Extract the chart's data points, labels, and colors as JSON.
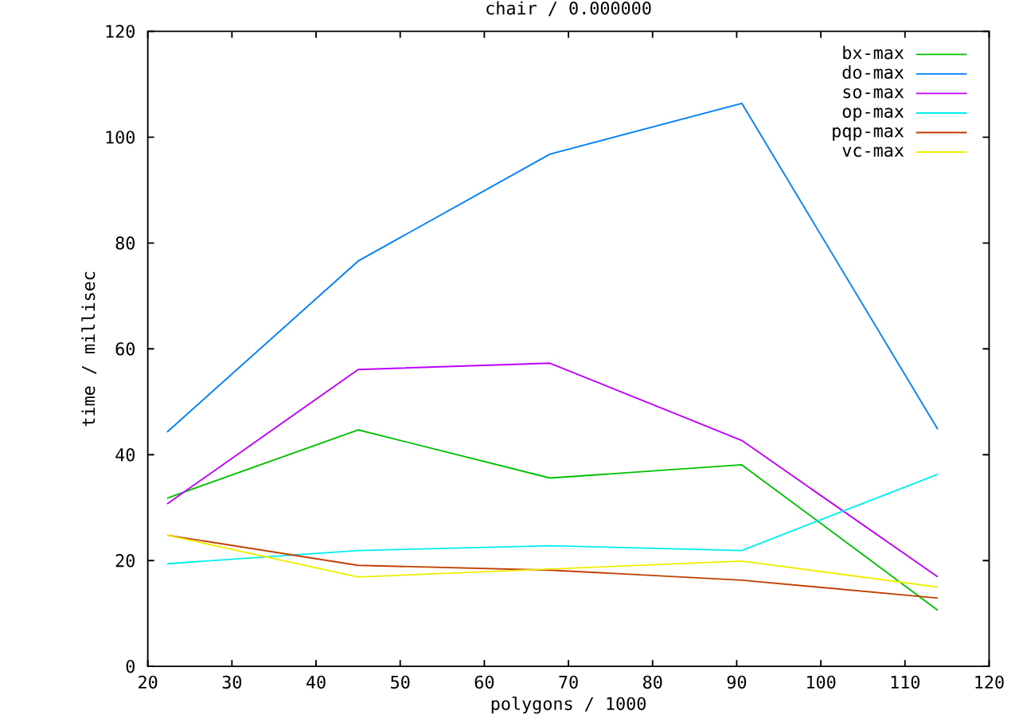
{
  "chart_data": {
    "type": "line",
    "title": "chair / 0.000000",
    "xlabel": "polygons / 1000",
    "ylabel": "time / millisec",
    "x": [
      22.3,
      45.0,
      67.8,
      90.6,
      113.9
    ],
    "series": [
      {
        "name": "bx-max",
        "color": "#00c000",
        "values": [
          31.8,
          44.7,
          35.6,
          38.1,
          10.6
        ]
      },
      {
        "name": "do-max",
        "color": "#0080ff",
        "values": [
          44.3,
          76.6,
          96.8,
          106.4,
          44.8
        ]
      },
      {
        "name": "so-max",
        "color": "#c000ff",
        "values": [
          30.7,
          56.1,
          57.3,
          42.7,
          16.9
        ]
      },
      {
        "name": "op-max",
        "color": "#00eeee",
        "values": [
          19.4,
          21.9,
          22.8,
          21.9,
          36.3
        ]
      },
      {
        "name": "pqp-max",
        "color": "#c04000",
        "values": [
          24.8,
          19.1,
          18.2,
          16.3,
          12.9
        ]
      },
      {
        "name": "vc-max",
        "color": "#eeee00",
        "values": [
          24.8,
          16.9,
          18.4,
          19.9,
          15.0
        ]
      }
    ],
    "xlim": [
      20,
      120
    ],
    "ylim": [
      0,
      120
    ],
    "xticks": [
      20,
      30,
      40,
      50,
      60,
      70,
      80,
      90,
      100,
      110,
      120
    ],
    "yticks": [
      0,
      20,
      40,
      60,
      80,
      100,
      120
    ],
    "legend": "top right",
    "marker": "none",
    "line_style": "solid"
  }
}
